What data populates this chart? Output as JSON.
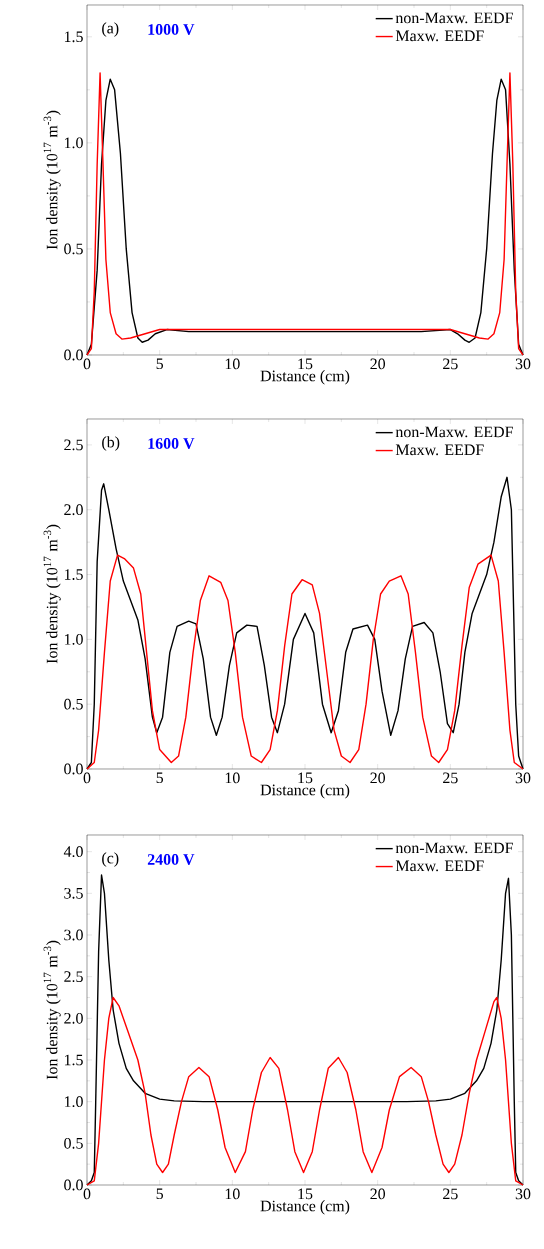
{
  "chart_data": [
    {
      "type": "line",
      "title": "1000 V",
      "annotations": [
        "(a)"
      ],
      "xlabel": "Distance (cm)",
      "ylabel": "Ion density (10$^{17}$ m$^{-3}$)",
      "xlim": [
        0,
        30
      ],
      "ylim": [
        0,
        1.65
      ],
      "xticks": [
        0,
        5,
        10,
        15,
        20,
        25,
        30
      ],
      "yticks": [
        {
          "value": 0,
          "label": "0.0"
        },
        0.5,
        {
          "value": 1,
          "label": "1.0"
        },
        1.5
      ],
      "legend": "top right",
      "series": [
        {
          "name": "non-Maxw. EEDF",
          "color": "#000000",
          "x": [
            0,
            0.3,
            0.7,
            1.0,
            1.3,
            1.6,
            1.9,
            2.3,
            2.7,
            3.1,
            3.5,
            3.8,
            4.2,
            4.7,
            5.5,
            7,
            10,
            15,
            20,
            23,
            25,
            25.5,
            26,
            26.3,
            26.7,
            27.1,
            27.5,
            27.9,
            28.2,
            28.5,
            28.8,
            29.1,
            29.4,
            29.7,
            30
          ],
          "values": [
            0,
            0.05,
            0.4,
            0.9,
            1.2,
            1.3,
            1.25,
            0.95,
            0.5,
            0.2,
            0.08,
            0.06,
            0.07,
            0.1,
            0.12,
            0.11,
            0.11,
            0.11,
            0.11,
            0.11,
            0.12,
            0.1,
            0.07,
            0.06,
            0.08,
            0.2,
            0.5,
            0.95,
            1.2,
            1.3,
            1.25,
            0.9,
            0.4,
            0.05,
            0
          ]
        },
        {
          "name": "Maxw. EEDF",
          "color": "#ff0000",
          "x": [
            0,
            0.3,
            0.5,
            0.7,
            0.9,
            1.1,
            1.3,
            1.6,
            2.0,
            2.4,
            3,
            4,
            5,
            10,
            15,
            20,
            25,
            26,
            27,
            27.6,
            28,
            28.4,
            28.7,
            28.9,
            29.1,
            29.3,
            29.5,
            29.7,
            30
          ],
          "values": [
            0,
            0.03,
            0.3,
            0.9,
            1.33,
            0.9,
            0.45,
            0.2,
            0.1,
            0.075,
            0.08,
            0.1,
            0.12,
            0.12,
            0.12,
            0.12,
            0.12,
            0.1,
            0.08,
            0.075,
            0.1,
            0.2,
            0.45,
            0.9,
            1.33,
            0.9,
            0.3,
            0.03,
            0
          ]
        }
      ]
    },
    {
      "type": "line",
      "title": "1600 V",
      "annotations": [
        "(b)"
      ],
      "xlabel": "Distance (cm)",
      "ylabel": "Ion density (10$^{17}$ m$^{-3}$)",
      "xlim": [
        0,
        30
      ],
      "ylim": [
        0,
        2.7
      ],
      "xticks": [
        0,
        5,
        10,
        15,
        20,
        25,
        30
      ],
      "yticks": [
        {
          "value": 0,
          "label": "0.0"
        },
        0.5,
        {
          "value": 1,
          "label": "1.0"
        },
        1.5,
        {
          "value": 2,
          "label": "2.0"
        },
        2.5
      ],
      "legend": "top right",
      "series": [
        {
          "name": "non-Maxw. EEDF",
          "color": "#000000",
          "x": [
            0,
            0.3,
            0.5,
            0.7,
            1.0,
            1.15,
            1.5,
            2,
            2.5,
            3,
            3.5,
            4,
            4.5,
            4.8,
            5.2,
            5.7,
            6.2,
            7,
            7.5,
            8,
            8.5,
            8.9,
            9.3,
            9.8,
            10.3,
            11,
            11.7,
            12.2,
            12.7,
            13.1,
            13.6,
            14.2,
            15,
            15.6,
            16.2,
            16.8,
            17.3,
            17.8,
            18.3,
            19.3,
            19.8,
            20.3,
            20.9,
            21.4,
            21.9,
            22.4,
            23.2,
            23.8,
            24.3,
            24.8,
            25.2,
            25.6,
            26,
            26.5,
            27,
            27.5,
            28,
            28.5,
            28.9,
            29.2,
            29.5,
            29.7,
            30
          ],
          "values": [
            0,
            0.05,
            0.5,
            1.6,
            2.15,
            2.2,
            2.0,
            1.7,
            1.45,
            1.3,
            1.15,
            0.85,
            0.4,
            0.28,
            0.4,
            0.9,
            1.1,
            1.14,
            1.12,
            0.85,
            0.4,
            0.26,
            0.4,
            0.8,
            1.05,
            1.11,
            1.1,
            0.8,
            0.4,
            0.28,
            0.5,
            1.0,
            1.2,
            1.05,
            0.5,
            0.28,
            0.45,
            0.9,
            1.08,
            1.11,
            1.0,
            0.6,
            0.26,
            0.45,
            0.85,
            1.1,
            1.13,
            1.05,
            0.75,
            0.35,
            0.28,
            0.5,
            0.9,
            1.2,
            1.35,
            1.5,
            1.75,
            2.1,
            2.25,
            2.0,
            0.5,
            0.1,
            0
          ]
        },
        {
          "name": "Maxw. EEDF",
          "color": "#ff0000",
          "x": [
            0,
            0.5,
            0.8,
            1.2,
            1.6,
            2.1,
            2.6,
            3.2,
            3.7,
            4.1,
            4.5,
            5,
            5.8,
            6.3,
            6.8,
            7.3,
            7.8,
            8.4,
            9.2,
            9.7,
            10.2,
            10.7,
            11.3,
            12,
            12.6,
            13.1,
            13.6,
            14.1,
            14.8,
            15.5,
            16,
            16.5,
            17.0,
            17.5,
            18.1,
            18.7,
            19.2,
            19.7,
            20.2,
            20.8,
            21.6,
            22.1,
            22.6,
            23.1,
            23.7,
            24.2,
            24.8,
            25.3,
            25.8,
            26.3,
            26.9,
            27.8,
            28.3,
            28.7,
            29.1,
            29.4,
            30
          ],
          "values": [
            0,
            0.05,
            0.3,
            0.9,
            1.45,
            1.65,
            1.62,
            1.55,
            1.35,
            0.9,
            0.45,
            0.15,
            0.05,
            0.1,
            0.4,
            0.9,
            1.3,
            1.49,
            1.44,
            1.3,
            0.9,
            0.4,
            0.1,
            0.05,
            0.15,
            0.45,
            0.95,
            1.35,
            1.46,
            1.42,
            1.2,
            0.75,
            0.3,
            0.1,
            0.05,
            0.15,
            0.5,
            1.0,
            1.35,
            1.45,
            1.49,
            1.35,
            0.9,
            0.4,
            0.1,
            0.05,
            0.15,
            0.45,
            0.95,
            1.4,
            1.58,
            1.65,
            1.45,
            0.9,
            0.3,
            0.05,
            0
          ]
        }
      ]
    },
    {
      "type": "line",
      "title": "2400 V",
      "annotations": [
        "(c)"
      ],
      "xlabel": "Distance (cm)",
      "ylabel": "Ion density (10$^{17}$ m$^{-3}$)",
      "xlim": [
        0,
        30
      ],
      "ylim": [
        0,
        4.2
      ],
      "xticks": [
        0,
        5,
        10,
        15,
        20,
        25,
        30
      ],
      "yticks": [
        {
          "value": 0,
          "label": "0.0"
        },
        0.5,
        {
          "value": 1,
          "label": "1.0"
        },
        1.5,
        {
          "value": 2,
          "label": "2.0"
        },
        2.5,
        {
          "value": 3,
          "label": "3.0"
        },
        3.5,
        {
          "value": 4,
          "label": "4.0"
        }
      ],
      "legend": "top right",
      "series": [
        {
          "name": "non-Maxw. EEDF",
          "color": "#000000",
          "x": [
            0,
            0.3,
            0.5,
            0.6,
            0.8,
            1.0,
            1.2,
            1.5,
            1.8,
            2.2,
            2.7,
            3.2,
            4,
            5,
            6,
            8,
            15,
            22,
            24,
            25,
            26,
            26.8,
            27.3,
            27.8,
            28.2,
            28.5,
            28.8,
            29.0,
            29.2,
            29.4,
            29.5,
            29.7,
            30
          ],
          "values": [
            0,
            0.05,
            0.15,
            1.0,
            2.8,
            3.72,
            3.5,
            2.7,
            2.1,
            1.7,
            1.4,
            1.25,
            1.1,
            1.03,
            1.01,
            1.0,
            1.0,
            1.0,
            1.01,
            1.03,
            1.1,
            1.25,
            1.4,
            1.7,
            2.1,
            2.7,
            3.5,
            3.68,
            3.0,
            1.0,
            0.15,
            0.05,
            0
          ]
        },
        {
          "name": "Maxw. EEDF",
          "color": "#ff0000",
          "x": [
            0,
            0.5,
            0.8,
            1.2,
            1.5,
            1.8,
            2.2,
            2.8,
            3.5,
            4,
            4.4,
            4.8,
            5.2,
            5.6,
            6,
            6.5,
            7,
            7.7,
            8.4,
            9,
            9.5,
            10.2,
            10.9,
            11.4,
            12,
            12.6,
            13.2,
            13.8,
            14.3,
            14.9,
            15.5,
            16,
            16.6,
            17.3,
            17.9,
            18.5,
            19,
            19.6,
            20.3,
            20.8,
            21.5,
            22.3,
            23,
            23.5,
            24,
            24.5,
            24.9,
            25.3,
            25.8,
            26.3,
            26.8,
            27.4,
            28.0,
            28.2,
            28.5,
            28.8,
            29.2,
            29.5,
            30
          ],
          "values": [
            0,
            0.05,
            0.5,
            1.5,
            2.0,
            2.25,
            2.15,
            1.85,
            1.5,
            1.1,
            0.6,
            0.25,
            0.15,
            0.25,
            0.6,
            1.0,
            1.3,
            1.41,
            1.3,
            0.9,
            0.45,
            0.15,
            0.4,
            0.9,
            1.35,
            1.53,
            1.4,
            0.9,
            0.4,
            0.15,
            0.4,
            0.9,
            1.4,
            1.53,
            1.35,
            0.9,
            0.4,
            0.15,
            0.45,
            0.9,
            1.3,
            1.41,
            1.3,
            1.0,
            0.6,
            0.25,
            0.15,
            0.25,
            0.6,
            1.1,
            1.5,
            1.85,
            2.2,
            2.25,
            2.0,
            1.5,
            0.5,
            0.05,
            0
          ]
        }
      ]
    }
  ]
}
